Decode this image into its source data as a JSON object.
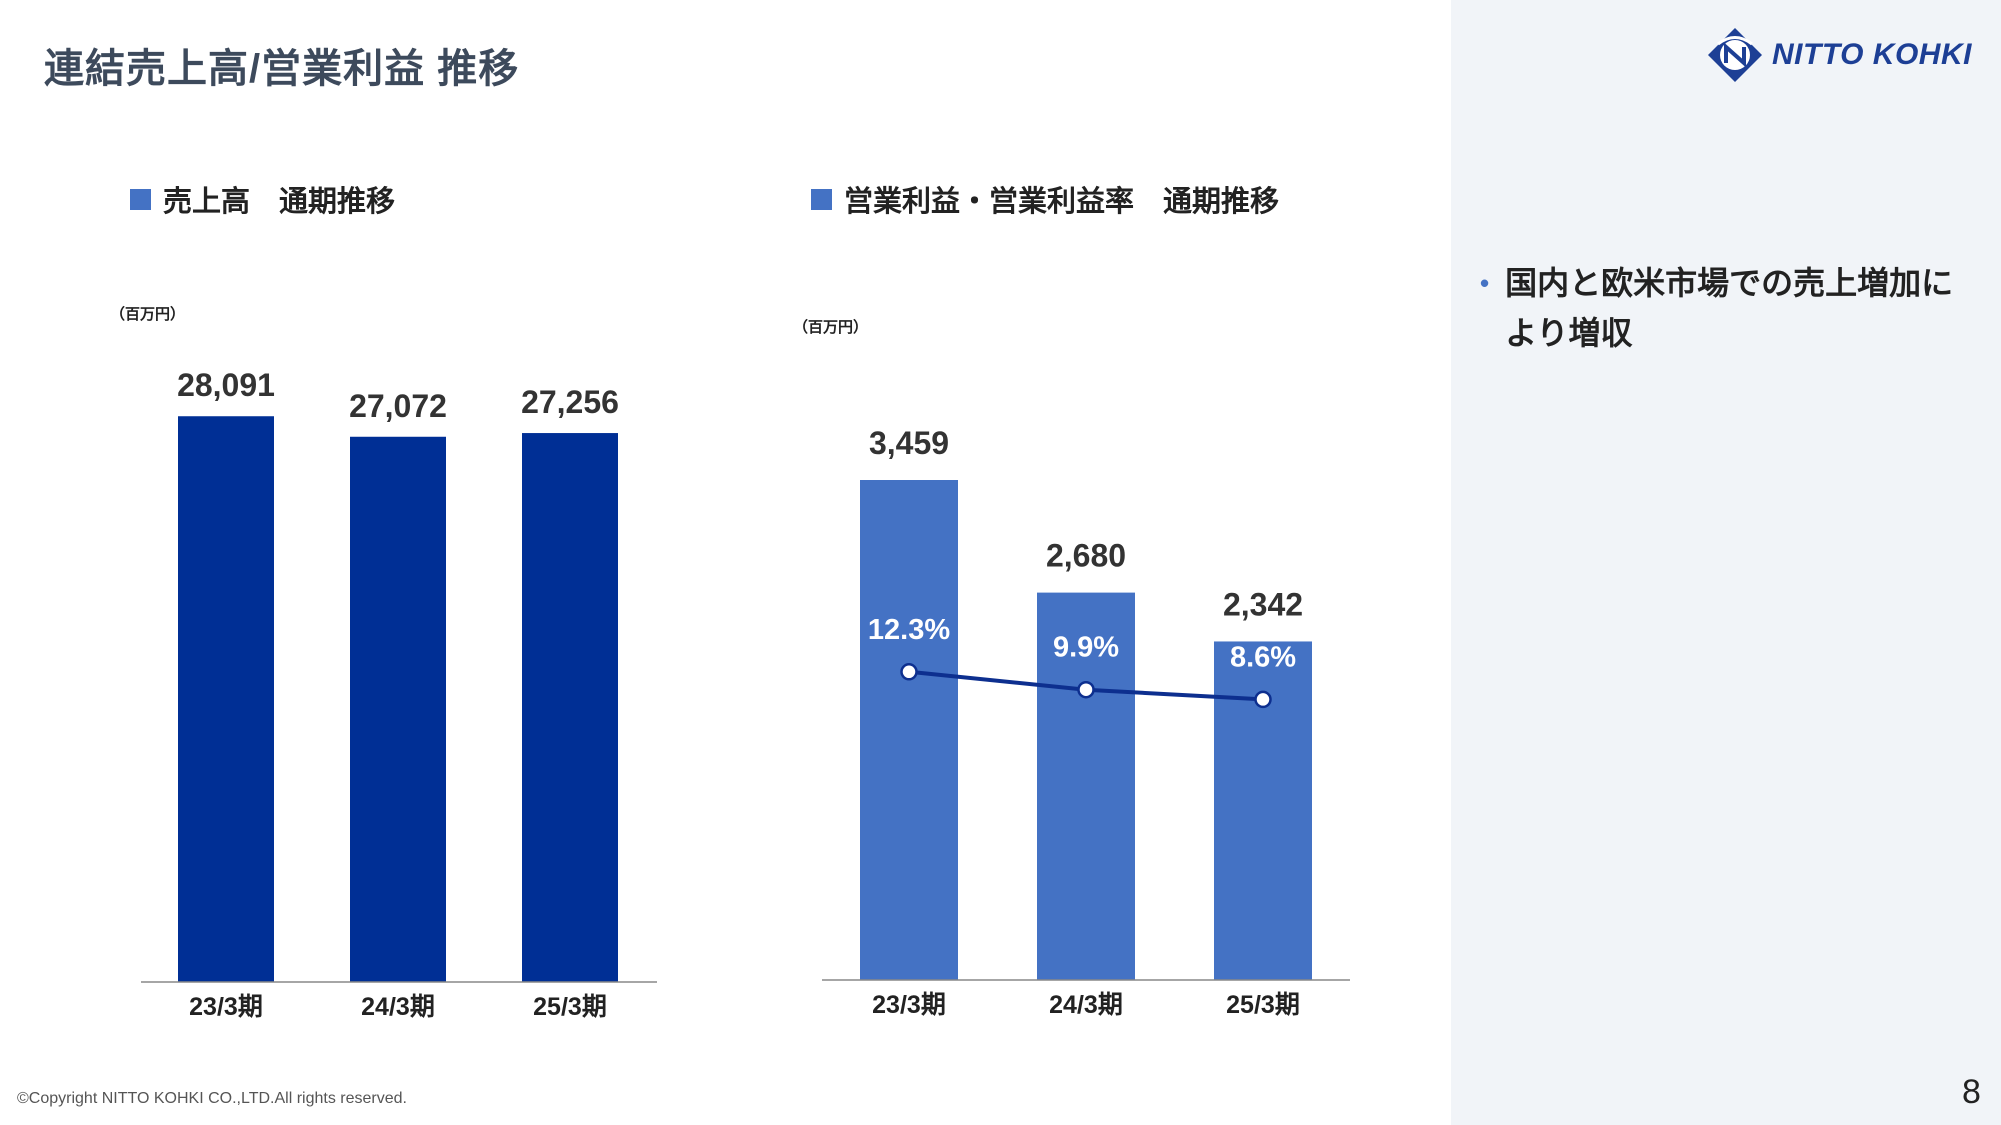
{
  "page": {
    "title": "連結売上高/営業利益 推移",
    "page_number": "8",
    "copyright": "©Copyright NITTO KOHKI CO.,LTD.All rights reserved.",
    "logo_text": "NITTO KOHKI"
  },
  "sales_section": {
    "title": "売上高　通期推移",
    "unit": "（百万円）"
  },
  "profit_section": {
    "title": "営業利益・営業利益率　通期推移",
    "unit": "（百万円）"
  },
  "commentary": {
    "bullets": [
      "国内と欧米市場での売上増加により増収"
    ]
  },
  "colors": {
    "sales_bar": "#002f95",
    "profit_bar": "#4472c4",
    "margin_line": "#0d2f8f",
    "accent": "#4472c4"
  },
  "chart_data": [
    {
      "type": "bar",
      "title": "売上高　通期推移",
      "unit": "（百万円）",
      "categories": [
        "23/3期",
        "24/3期",
        "25/3期"
      ],
      "values": [
        28091,
        27072,
        27256
      ],
      "value_labels": [
        "28,091",
        "27,072",
        "27,256"
      ],
      "ylim": [
        0,
        28500
      ]
    },
    {
      "type": "bar",
      "title": "営業利益・営業利益率　通期推移",
      "unit": "（百万円）",
      "categories": [
        "23/3期",
        "24/3期",
        "25/3期"
      ],
      "series": [
        {
          "values": [
            3459,
            2680,
            2342
          ],
          "labels": [
            "3,459",
            "2,680",
            "2,342"
          ],
          "chart": "bar"
        },
        {
          "values": [
            12.3,
            9.9,
            8.6
          ],
          "labels": [
            "12.3%",
            "9.9%",
            "8.6%"
          ],
          "chart": "line"
        }
      ],
      "ylim": [
        0,
        3459
      ],
      "secondary_ylim": [
        -29,
        38
      ]
    }
  ]
}
